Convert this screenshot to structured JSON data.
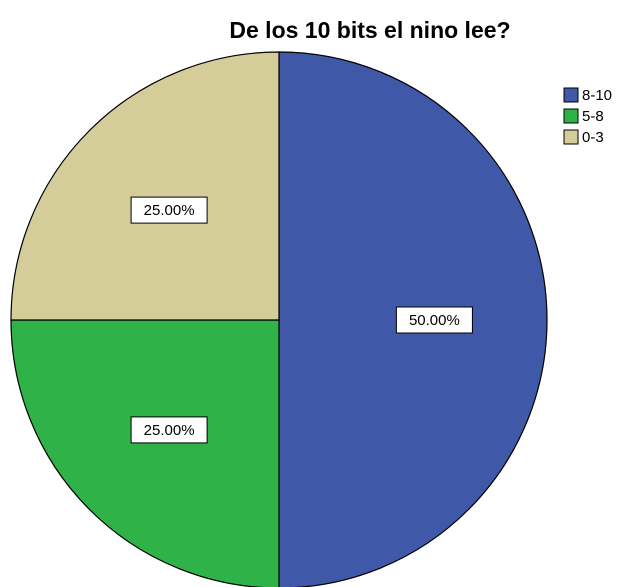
{
  "chart_data": {
    "type": "pie",
    "title": "De los 10 bits el nino lee?",
    "slices": [
      {
        "label": "8-10",
        "value": 50.0,
        "data_label": "50.00%",
        "color": "#3f58a7"
      },
      {
        "label": "5-8",
        "value": 25.0,
        "data_label": "25.00%",
        "color": "#2fb247"
      },
      {
        "label": "0-3",
        "value": 25.0,
        "data_label": "25.00%",
        "color": "#d5cd99"
      }
    ],
    "start_angle": "12 o'clock",
    "direction": "clockwise",
    "legend_position": "top-right"
  }
}
